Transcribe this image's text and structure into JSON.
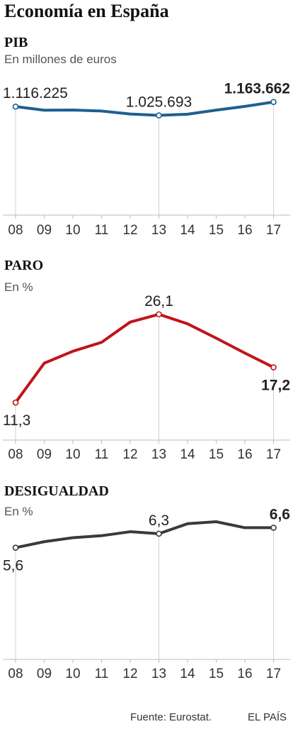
{
  "title": "Economía en España",
  "footer": {
    "source": "Fuente: Eurostat.",
    "brand": "EL PAÍS"
  },
  "chart_data": [
    {
      "type": "line",
      "title": "PIB",
      "subtitle": "En millones de euros",
      "categories": [
        "08",
        "09",
        "10",
        "11",
        "12",
        "13",
        "14",
        "15",
        "16",
        "17"
      ],
      "series": [
        {
          "values": [
            1116225,
            1079034,
            1080913,
            1070413,
            1039815,
            1025693,
            1037820,
            1079998,
            1118522,
            1163662
          ]
        }
      ],
      "ylim": [
        0,
        1300000
      ],
      "color": "#1f5f8f",
      "annotations": [
        {
          "index": 0,
          "label": "1.116.225",
          "position": "above",
          "bold": false
        },
        {
          "index": 5,
          "label": "1.025.693",
          "position": "above",
          "bold": false
        },
        {
          "index": 9,
          "label": "1.163.662",
          "position": "above",
          "bold": true
        }
      ],
      "grid": false
    },
    {
      "type": "line",
      "title": "PARO",
      "subtitle": "En %",
      "categories": [
        "08",
        "09",
        "10",
        "11",
        "12",
        "13",
        "14",
        "15",
        "16",
        "17"
      ],
      "series": [
        {
          "values": [
            11.3,
            17.9,
            19.9,
            21.4,
            24.8,
            26.1,
            24.5,
            22.1,
            19.6,
            17.2
          ]
        }
      ],
      "ylim": [
        5,
        30
      ],
      "color": "#c0141a",
      "annotations": [
        {
          "index": 0,
          "label": "11,3",
          "position": "below",
          "bold": false
        },
        {
          "index": 5,
          "label": "26,1",
          "position": "above",
          "bold": false
        },
        {
          "index": 9,
          "label": "17,2",
          "position": "below",
          "bold": true
        }
      ],
      "grid": false
    },
    {
      "type": "line",
      "title": "DESIGUALDAD",
      "subtitle": "En %",
      "categories": [
        "08",
        "09",
        "10",
        "11",
        "12",
        "13",
        "14",
        "15",
        "16",
        "17"
      ],
      "series": [
        {
          "values": [
            5.6,
            5.9,
            6.1,
            6.2,
            6.4,
            6.3,
            6.8,
            6.9,
            6.6,
            6.6
          ]
        }
      ],
      "ylim": [
        0,
        8.5
      ],
      "color": "#3a3a3a",
      "annotations": [
        {
          "index": 0,
          "label": "5,6",
          "position": "below",
          "bold": false
        },
        {
          "index": 5,
          "label": "6,3",
          "position": "above",
          "bold": false
        },
        {
          "index": 9,
          "label": "6,6",
          "position": "above",
          "bold": true
        }
      ],
      "grid": false
    }
  ]
}
